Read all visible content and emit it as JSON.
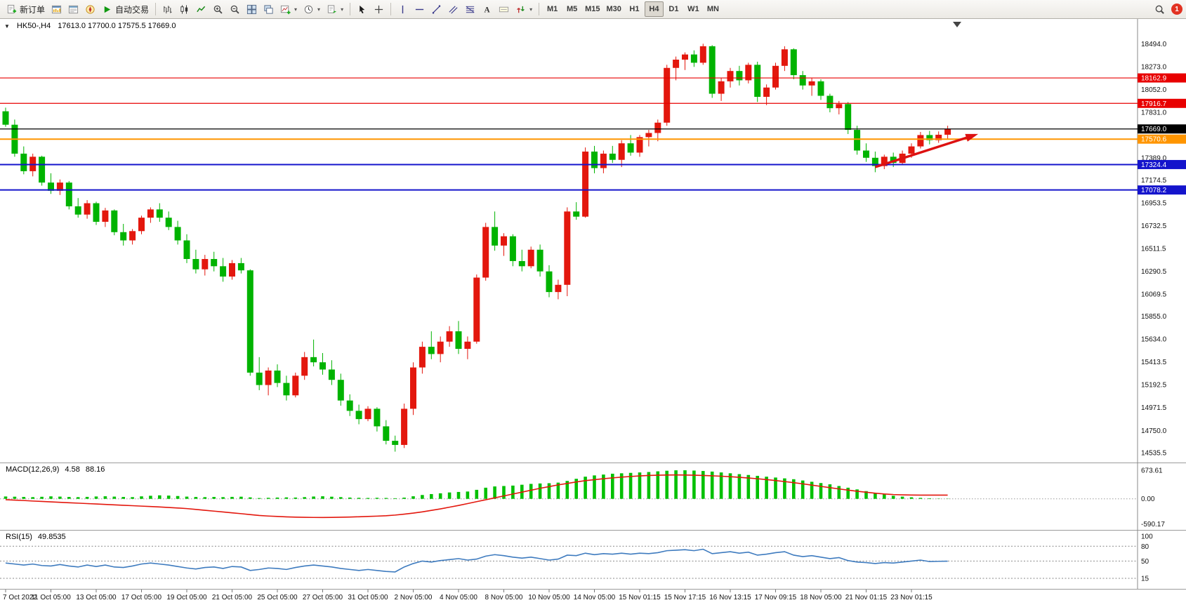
{
  "toolbar": {
    "new_order_label": "新订单",
    "autotrading_label": "自动交易",
    "timeframes": [
      "M1",
      "M5",
      "M15",
      "M30",
      "H1",
      "H4",
      "D1",
      "W1",
      "MN"
    ],
    "active_timeframe": "H4",
    "notification_count": "1"
  },
  "chart_header": {
    "symbol": "HK50-,H4",
    "ohlc": "17613.0 17700.0 17575.5 17669.0"
  },
  "chart_data": [
    {
      "type": "candlestick",
      "title": "HK50-,H4",
      "timeframe": "H4",
      "up_color": "#e3170d",
      "down_color": "#00b300",
      "ylim": [
        14460,
        18700
      ],
      "yticks": [
        "18494.0",
        "18273.0",
        "18052.0",
        "17831.0",
        "17389.0",
        "17174.5",
        "16953.5",
        "16732.5",
        "16511.5",
        "16290.5",
        "16069.5",
        "15855.0",
        "15634.0",
        "15413.5",
        "15192.5",
        "14971.5",
        "14750.0",
        "14535.5"
      ],
      "levels": [
        {
          "value": 18162.9,
          "label": "18162.9",
          "color": "#e80000",
          "width": 1.2
        },
        {
          "value": 17916.7,
          "label": "17916.7",
          "color": "#e80000",
          "width": 1.2
        },
        {
          "value": 17669.0,
          "label": "17669.0",
          "color": "#000000",
          "width": 1.2
        },
        {
          "value": 17570.6,
          "label": "17570.6",
          "color": "#ff9500",
          "width": 2
        },
        {
          "value": 17324.4,
          "label": "17324.4",
          "color": "#1414cc",
          "width": 2
        },
        {
          "value": 17078.2,
          "label": "17078.2",
          "color": "#1414cc",
          "width": 2
        }
      ],
      "arrow": {
        "from_index": 96,
        "from_price": 17300,
        "to_index": 107,
        "to_price": 17610,
        "color": "#dd1111"
      },
      "x_labels": [
        [
          0,
          "7 Oct 2022"
        ],
        [
          5,
          "11 Oct 05:00"
        ],
        [
          10,
          "13 Oct 05:00"
        ],
        [
          15,
          "17 Oct 05:00"
        ],
        [
          20,
          "19 Oct 05:00"
        ],
        [
          25,
          "21 Oct 05:00"
        ],
        [
          30,
          "25 Oct 05:00"
        ],
        [
          35,
          "27 Oct 05:00"
        ],
        [
          40,
          "31 Oct 05:00"
        ],
        [
          45,
          "2 Nov 05:00"
        ],
        [
          50,
          "4 Nov 05:00"
        ],
        [
          55,
          "8 Nov 05:00"
        ],
        [
          60,
          "10 Nov 05:00"
        ],
        [
          65,
          "14 Nov 05:00"
        ],
        [
          70,
          "15 Nov 01:15"
        ],
        [
          75,
          "15 Nov 17:15"
        ],
        [
          80,
          "16 Nov 13:15"
        ],
        [
          85,
          "17 Nov 09:15"
        ],
        [
          90,
          "18 Nov 05:00"
        ],
        [
          95,
          "21 Nov 01:15"
        ],
        [
          100,
          "23 Nov 01:15"
        ]
      ],
      "candles": [
        [
          17840,
          17875,
          17690,
          17710
        ],
        [
          17710,
          17760,
          17400,
          17430
        ],
        [
          17430,
          17500,
          17230,
          17260
        ],
        [
          17260,
          17430,
          17210,
          17400
        ],
        [
          17400,
          17410,
          17120,
          17150
        ],
        [
          17150,
          17240,
          17040,
          17070
        ],
        [
          17070,
          17180,
          17030,
          17150
        ],
        [
          17150,
          17165,
          16890,
          16920
        ],
        [
          16920,
          17000,
          16810,
          16840
        ],
        [
          16840,
          16980,
          16800,
          16950
        ],
        [
          16950,
          16965,
          16740,
          16770
        ],
        [
          16770,
          16905,
          16720,
          16880
        ],
        [
          16880,
          16890,
          16640,
          16670
        ],
        [
          16670,
          16750,
          16540,
          16590
        ],
        [
          16590,
          16700,
          16550,
          16680
        ],
        [
          16680,
          16830,
          16650,
          16810
        ],
        [
          16810,
          16910,
          16760,
          16890
        ],
        [
          16890,
          16950,
          16770,
          16810
        ],
        [
          16810,
          16870,
          16690,
          16720
        ],
        [
          16720,
          16780,
          16550,
          16590
        ],
        [
          16590,
          16650,
          16370,
          16410
        ],
        [
          16410,
          16500,
          16270,
          16310
        ],
        [
          16310,
          16450,
          16250,
          16410
        ],
        [
          16410,
          16480,
          16290,
          16340
        ],
        [
          16340,
          16420,
          16190,
          16240
        ],
        [
          16240,
          16400,
          16210,
          16370
        ],
        [
          16370,
          16420,
          16270,
          16300
        ],
        [
          16300,
          16310,
          15280,
          15310
        ],
        [
          15310,
          15460,
          15140,
          15190
        ],
        [
          15190,
          15360,
          15090,
          15330
        ],
        [
          15330,
          15390,
          15170,
          15210
        ],
        [
          15210,
          15280,
          15040,
          15090
        ],
        [
          15090,
          15310,
          15070,
          15280
        ],
        [
          15280,
          15510,
          15240,
          15460
        ],
        [
          15460,
          15630,
          15370,
          15410
        ],
        [
          15410,
          15500,
          15290,
          15340
        ],
        [
          15340,
          15430,
          15190,
          15240
        ],
        [
          15240,
          15300,
          14990,
          15040
        ],
        [
          15040,
          15100,
          14890,
          14940
        ],
        [
          14940,
          15000,
          14810,
          14860
        ],
        [
          14860,
          14985,
          14840,
          14960
        ],
        [
          14960,
          14975,
          14740,
          14790
        ],
        [
          14790,
          14850,
          14615,
          14650
        ],
        [
          14650,
          14700,
          14545,
          14610
        ],
        [
          14610,
          15010,
          14580,
          14960
        ],
        [
          14960,
          15410,
          14900,
          15360
        ],
        [
          15360,
          15610,
          15300,
          15560
        ],
        [
          15560,
          15710,
          15440,
          15490
        ],
        [
          15490,
          15660,
          15410,
          15610
        ],
        [
          15610,
          15760,
          15560,
          15710
        ],
        [
          15710,
          15810,
          15490,
          15540
        ],
        [
          15540,
          15660,
          15440,
          15610
        ],
        [
          15610,
          16260,
          15590,
          16230
        ],
        [
          16230,
          16760,
          16200,
          16720
        ],
        [
          16720,
          16870,
          16490,
          16540
        ],
        [
          16540,
          16660,
          16440,
          16630
        ],
        [
          16630,
          16650,
          16340,
          16390
        ],
        [
          16390,
          16500,
          16290,
          16340
        ],
        [
          16340,
          16530,
          16320,
          16500
        ],
        [
          16500,
          16550,
          16240,
          16290
        ],
        [
          16290,
          16350,
          16040,
          16090
        ],
        [
          16090,
          16210,
          16020,
          16160
        ],
        [
          16160,
          16910,
          16050,
          16870
        ],
        [
          16870,
          16960,
          16790,
          16820
        ],
        [
          16820,
          17490,
          16810,
          17450
        ],
        [
          17450,
          17505,
          17240,
          17290
        ],
        [
          17290,
          17460,
          17240,
          17430
        ],
        [
          17430,
          17505,
          17340,
          17370
        ],
        [
          17370,
          17560,
          17300,
          17530
        ],
        [
          17530,
          17610,
          17410,
          17440
        ],
        [
          17440,
          17610,
          17400,
          17590
        ],
        [
          17590,
          17660,
          17500,
          17630
        ],
        [
          17630,
          17760,
          17550,
          17730
        ],
        [
          17730,
          18290,
          17700,
          18260
        ],
        [
          18260,
          18370,
          18140,
          18340
        ],
        [
          18340,
          18410,
          18240,
          18390
        ],
        [
          18390,
          18430,
          18270,
          18310
        ],
        [
          18310,
          18494,
          18290,
          18470
        ],
        [
          18470,
          18480,
          17970,
          18010
        ],
        [
          18010,
          18160,
          17940,
          18130
        ],
        [
          18130,
          18260,
          18070,
          18230
        ],
        [
          18230,
          18280,
          18090,
          18140
        ],
        [
          18140,
          18310,
          18110,
          18290
        ],
        [
          18290,
          18320,
          17930,
          17980
        ],
        [
          17980,
          18100,
          17900,
          18070
        ],
        [
          18070,
          18310,
          18050,
          18280
        ],
        [
          18280,
          18470,
          18230,
          18440
        ],
        [
          18440,
          18450,
          18150,
          18190
        ],
        [
          18190,
          18230,
          18050,
          18090
        ],
        [
          18090,
          18160,
          17990,
          18130
        ],
        [
          18130,
          18150,
          17950,
          17990
        ],
        [
          17990,
          18010,
          17830,
          17870
        ],
        [
          17870,
          17940,
          17810,
          17910
        ],
        [
          17910,
          17930,
          17620,
          17660
        ],
        [
          17660,
          17700,
          17420,
          17460
        ],
        [
          17460,
          17530,
          17350,
          17390
        ],
        [
          17390,
          17450,
          17250,
          17310
        ],
        [
          17310,
          17420,
          17280,
          17400
        ],
        [
          17400,
          17440,
          17300,
          17340
        ],
        [
          17340,
          17460,
          17320,
          17430
        ],
        [
          17430,
          17530,
          17390,
          17500
        ],
        [
          17500,
          17640,
          17480,
          17610
        ],
        [
          17610,
          17650,
          17520,
          17560
        ],
        [
          17560,
          17645,
          17535,
          17613
        ],
        [
          17613,
          17700,
          17575.5,
          17669
        ]
      ]
    },
    {
      "type": "macd",
      "label": "MACD(12,26,9)",
      "macd_value": "4.58",
      "signal_value": "88.16",
      "yticks": [
        "673.61",
        "0.00",
        "-590.17"
      ],
      "ylim": [
        -650,
        740
      ],
      "histogram_color": "#00c000",
      "signal_color": "#e3170d",
      "histogram": [
        55,
        50,
        45,
        40,
        48,
        58,
        52,
        44,
        40,
        46,
        55,
        60,
        52,
        44,
        40,
        58,
        72,
        82,
        76,
        66,
        52,
        44,
        40,
        44,
        40,
        46,
        50,
        34,
        18,
        24,
        30,
        34,
        30,
        40,
        54,
        60,
        50,
        40,
        30,
        24,
        20,
        24,
        20,
        14,
        28,
        60,
        90,
        112,
        130,
        150,
        162,
        172,
        212,
        262,
        292,
        302,
        312,
        332,
        352,
        362,
        368,
        382,
        422,
        472,
        522,
        552,
        572,
        592,
        602,
        612,
        622,
        632,
        648,
        662,
        672,
        673,
        666,
        656,
        642,
        622,
        602,
        582,
        562,
        542,
        522,
        502,
        482,
        462,
        432,
        402,
        372,
        342,
        302,
        262,
        222,
        182,
        142,
        102,
        72,
        52,
        36,
        22,
        12,
        6,
        4.58
      ],
      "signal": [
        -20,
        -30,
        -40,
        -52,
        -62,
        -72,
        -82,
        -92,
        -102,
        -112,
        -122,
        -132,
        -142,
        -152,
        -162,
        -172,
        -182,
        -192,
        -204,
        -216,
        -230,
        -250,
        -270,
        -290,
        -310,
        -330,
        -350,
        -372,
        -392,
        -406,
        -416,
        -426,
        -432,
        -436,
        -439,
        -440,
        -438,
        -434,
        -429,
        -423,
        -416,
        -408,
        -398,
        -383,
        -362,
        -337,
        -307,
        -272,
        -237,
        -197,
        -157,
        -112,
        -67,
        -22,
        23,
        68,
        113,
        158,
        203,
        248,
        288,
        328,
        363,
        398,
        428,
        452,
        474,
        494,
        512,
        527,
        540,
        550,
        557,
        561,
        563,
        561,
        557,
        551,
        543,
        533,
        521,
        507,
        491,
        473,
        453,
        431,
        407,
        381,
        353,
        323,
        293,
        263,
        233,
        205,
        179,
        155,
        133,
        114,
        101,
        93,
        89,
        87,
        87,
        88,
        88.16
      ]
    },
    {
      "type": "rsi",
      "label": "RSI(15)",
      "value": "49.8535",
      "yticks": [
        "100",
        "80",
        "50",
        "15"
      ],
      "levels": [
        80,
        50,
        15
      ],
      "ylim": [
        -2,
        106
      ],
      "line_color": "#3e7bbf",
      "values": [
        46,
        44,
        42,
        44,
        41,
        40,
        43,
        40,
        38,
        42,
        39,
        42,
        38,
        37,
        40,
        44,
        46,
        44,
        42,
        39,
        36,
        34,
        37,
        38,
        35,
        39,
        38,
        31,
        33,
        36,
        35,
        33,
        37,
        40,
        42,
        40,
        38,
        35,
        33,
        31,
        33,
        31,
        29,
        28,
        38,
        45,
        50,
        48,
        51,
        53,
        55,
        52,
        54,
        60,
        63,
        61,
        58,
        56,
        58,
        55,
        52,
        54,
        62,
        61,
        66,
        63,
        65,
        64,
        66,
        64,
        66,
        65,
        67,
        71,
        72,
        73,
        71,
        74,
        65,
        67,
        69,
        66,
        68,
        62,
        64,
        67,
        69,
        62,
        59,
        61,
        58,
        55,
        57,
        51,
        48,
        47,
        45,
        47,
        46,
        48,
        50,
        52,
        49,
        49.5,
        49.85
      ]
    }
  ]
}
